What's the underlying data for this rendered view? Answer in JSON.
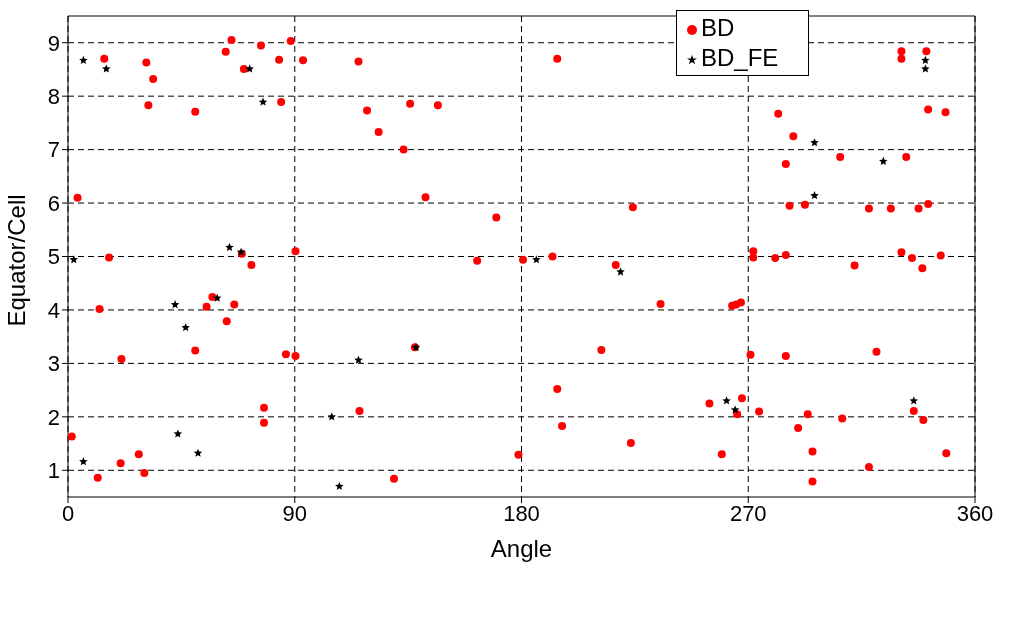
{
  "chart_data": {
    "type": "scatter",
    "xlabel": "Angle",
    "ylabel": "Equator/Cell",
    "xlim": [
      0,
      360
    ],
    "xticks": [
      0,
      90,
      180,
      270,
      360
    ],
    "ylim": [
      0.5,
      9.5
    ],
    "yticks": [
      1,
      2,
      3,
      4,
      5,
      6,
      7,
      8,
      9
    ],
    "grid": true,
    "legend": "top right",
    "series": [
      {
        "name": "BD",
        "color": "#ff0000",
        "marker": "circle",
        "x": [
          1.5,
          3.8,
          11.8,
          12.5,
          14.4,
          16.3,
          20.9,
          21.2,
          28.1,
          30.3,
          31.1,
          31.9,
          33.8,
          50.5,
          50.5,
          55.0,
          57.3,
          62.6,
          63.0,
          64.9,
          66.0,
          69.8,
          69.0,
          72.8,
          76.6,
          77.8,
          77.8,
          83.8,
          84.6,
          86.5,
          88.4,
          90.3,
          90.3,
          93.3,
          115.3,
          115.7,
          118.7,
          123.3,
          129.4,
          133.2,
          135.8,
          137.7,
          141.9,
          146.8,
          162.4,
          170.0,
          178.8,
          180.6,
          192.3,
          194.2,
          194.2,
          196.1,
          211.7,
          217.4,
          223.4,
          224.2,
          235.2,
          254.6,
          259.5,
          263.6,
          265.2,
          267.1,
          265.6,
          267.5,
          270.9,
          272.0,
          272.0,
          274.3,
          281.9,
          280.7,
          284.9,
          284.9,
          284.9,
          286.4,
          287.9,
          289.8,
          292.5,
          293.6,
          295.5,
          295.5,
          306.5,
          307.3,
          312.2,
          317.9,
          317.9,
          320.9,
          326.6,
          330.8,
          330.8,
          330.8,
          332.7,
          335.0,
          335.7,
          337.6,
          339.1,
          339.5,
          340.7,
          341.4,
          341.4,
          346.4,
          348.3,
          348.6
        ],
        "values": [
          1.63,
          6.1,
          0.86,
          4.02,
          8.7,
          4.98,
          1.13,
          3.08,
          1.3,
          0.95,
          8.63,
          7.83,
          8.32,
          3.24,
          7.71,
          4.06,
          4.24,
          8.83,
          3.79,
          9.05,
          4.1,
          8.51,
          5.05,
          4.84,
          8.95,
          2.17,
          1.89,
          8.68,
          7.89,
          3.17,
          9.03,
          5.1,
          3.14,
          8.67,
          8.65,
          2.11,
          7.73,
          7.33,
          0.84,
          7.0,
          7.86,
          3.3,
          6.11,
          7.83,
          4.92,
          5.73,
          1.29,
          4.94,
          5.0,
          2.52,
          8.7,
          1.83,
          3.25,
          4.84,
          1.51,
          5.92,
          4.11,
          2.25,
          1.3,
          4.08,
          4.1,
          4.14,
          2.05,
          2.35,
          3.16,
          5.1,
          4.98,
          2.1,
          7.67,
          4.97,
          6.73,
          5.03,
          3.14,
          5.95,
          7.25,
          1.79,
          5.97,
          2.05,
          1.35,
          0.79,
          6.86,
          1.97,
          4.83,
          1.06,
          5.9,
          3.22,
          5.9,
          8.84,
          8.7,
          5.08,
          6.86,
          4.97,
          2.11,
          5.9,
          4.78,
          1.94,
          8.84,
          5.98,
          7.75,
          5.02,
          7.7,
          1.32
        ]
      },
      {
        "name": "BD_FE",
        "color": "#000000",
        "marker": "star",
        "x": [
          2.3,
          6.1,
          6.1,
          15.2,
          42.5,
          43.6,
          46.7,
          51.6,
          59.2,
          64.1,
          68.7,
          72.1,
          77.4,
          104.7,
          107.7,
          115.3,
          138.1,
          185.9,
          219.3,
          261.4,
          264.8,
          296.3,
          296.3,
          323.6,
          335.7,
          340.3,
          340.3
        ],
        "values": [
          4.94,
          8.67,
          1.16,
          8.51,
          4.1,
          1.68,
          3.67,
          1.32,
          4.22,
          5.17,
          5.08,
          8.51,
          7.89,
          2.0,
          0.7,
          3.06,
          3.3,
          4.94,
          4.71,
          2.3,
          2.13,
          7.13,
          6.14,
          6.78,
          2.3,
          8.67,
          8.51
        ]
      }
    ]
  }
}
